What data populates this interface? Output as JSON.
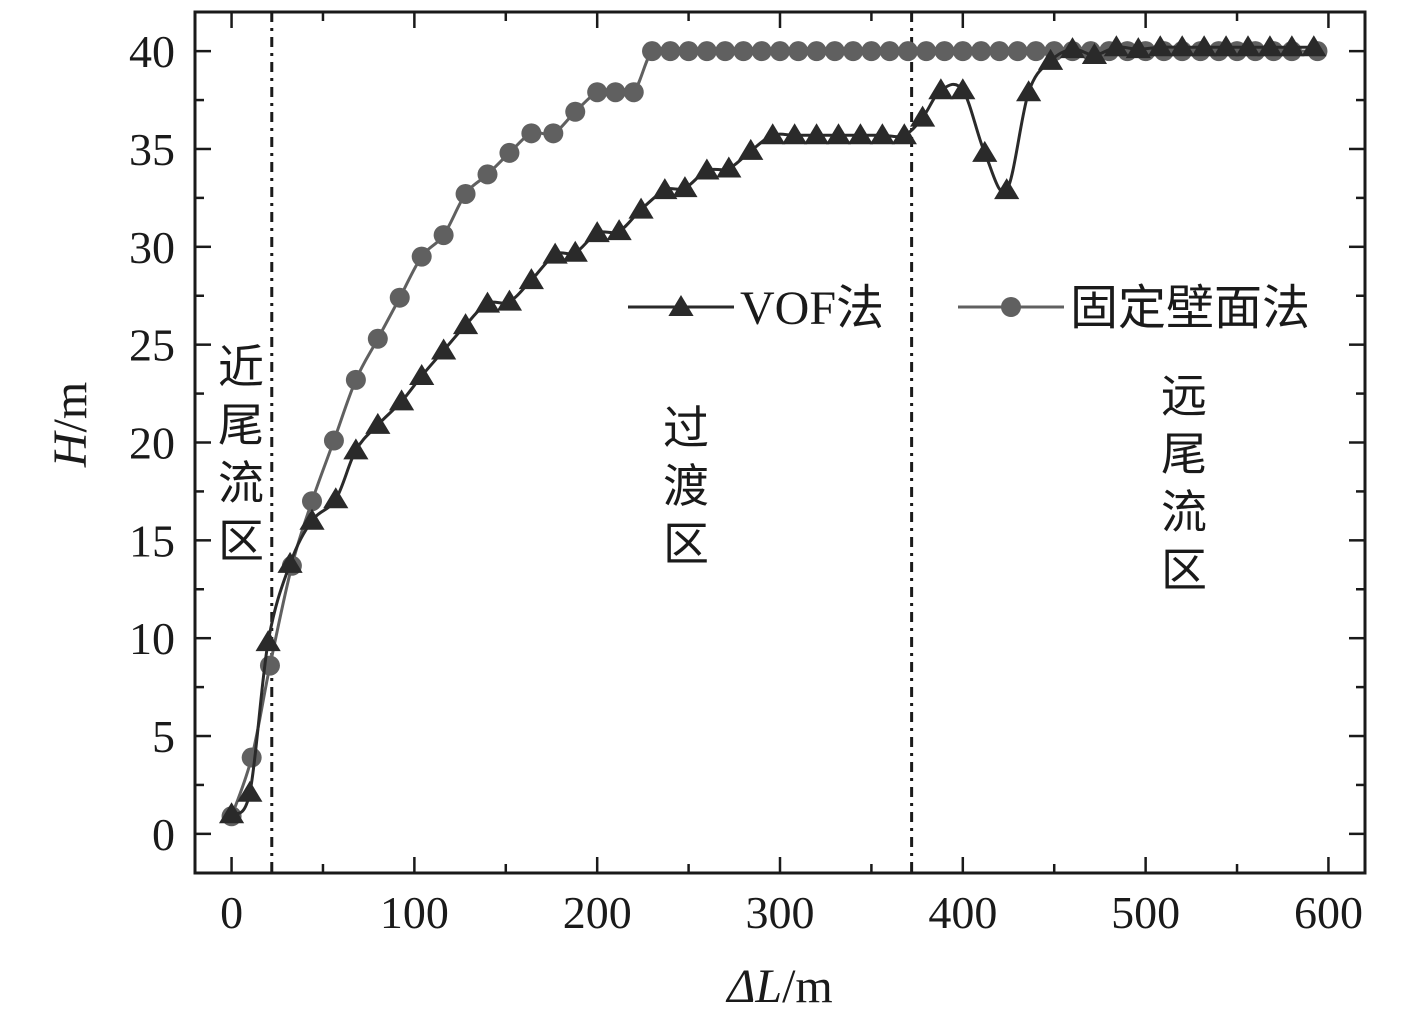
{
  "chart_data": {
    "type": "line",
    "xlabel": "ΔL/m",
    "ylabel": "H/m",
    "xlabel_parts": {
      "var": "ΔL",
      "unit": "/m"
    },
    "ylabel_parts": {
      "var": "H",
      "unit": "/m"
    },
    "xlim": [
      -20,
      620
    ],
    "ylim": [
      -2,
      42
    ],
    "xticks": [
      0,
      100,
      200,
      300,
      400,
      500,
      600
    ],
    "yticks": [
      0,
      5,
      10,
      15,
      20,
      25,
      30,
      35,
      40
    ],
    "grid": false,
    "legend_position": "upper-right (inside)",
    "vertical_lines": [
      22,
      372
    ],
    "regions": [
      {
        "label": "近尾流区",
        "chars": [
          "近",
          "尾",
          "流",
          "区"
        ]
      },
      {
        "label": "过渡区",
        "chars": [
          "过",
          "渡",
          "区"
        ]
      },
      {
        "label": "远尾流区",
        "chars": [
          "远",
          "尾",
          "流",
          "区"
        ]
      }
    ],
    "series": [
      {
        "name": "VOF法",
        "marker": "triangle",
        "color": "#2a2a2a",
        "x": [
          0,
          10,
          20,
          32,
          44,
          57,
          68,
          80,
          93,
          104,
          116,
          128,
          140,
          152,
          164,
          177,
          188,
          200,
          212,
          224,
          237,
          248,
          260,
          272,
          284,
          296,
          308,
          320,
          332,
          344,
          356,
          368,
          378,
          388,
          400,
          412,
          424,
          436,
          448,
          460,
          472,
          484,
          496,
          508,
          520,
          532,
          544,
          556,
          568,
          580,
          592
        ],
        "y": [
          1.0,
          2.1,
          9.8,
          13.8,
          16.0,
          17.1,
          19.6,
          20.9,
          22.1,
          23.4,
          24.7,
          26.0,
          27.1,
          27.2,
          28.3,
          29.6,
          29.7,
          30.7,
          30.8,
          31.9,
          32.9,
          33.0,
          33.9,
          34.0,
          34.9,
          35.7,
          35.7,
          35.7,
          35.7,
          35.7,
          35.7,
          35.7,
          36.6,
          38.0,
          38.0,
          34.8,
          32.9,
          37.9,
          39.5,
          40.1,
          39.8,
          40.2,
          40.1,
          40.2,
          40.2,
          40.2,
          40.2,
          40.2,
          40.2,
          40.2,
          40.2
        ]
      },
      {
        "name": "固定壁面法",
        "marker": "circle",
        "color": "#606060",
        "x": [
          0,
          11,
          21,
          33,
          44,
          56,
          68,
          80,
          92,
          104,
          116,
          128,
          140,
          152,
          164,
          176,
          188,
          200,
          210,
          220,
          230,
          240,
          250,
          260,
          270,
          280,
          290,
          300,
          310,
          320,
          330,
          340,
          350,
          360,
          370,
          380,
          390,
          400,
          410,
          420,
          430,
          440,
          450,
          460,
          470,
          480,
          490,
          500,
          510,
          520,
          530,
          540,
          550,
          560,
          570,
          580,
          594
        ],
        "y": [
          0.9,
          3.9,
          8.6,
          13.7,
          17.0,
          20.1,
          23.2,
          25.3,
          27.4,
          29.5,
          30.6,
          32.7,
          33.7,
          34.8,
          35.8,
          35.8,
          36.9,
          37.9,
          37.9,
          37.9,
          40.0,
          40.0,
          40.0,
          40.0,
          40.0,
          40.0,
          40.0,
          40.0,
          40.0,
          40.0,
          40.0,
          40.0,
          40.0,
          40.0,
          40.0,
          40.0,
          40.0,
          40.0,
          40.0,
          40.0,
          40.0,
          40.0,
          40.0,
          40.0,
          40.0,
          40.0,
          40.0,
          40.0,
          40.0,
          40.0,
          40.0,
          40.0,
          40.0,
          40.0,
          40.0,
          40.0,
          40.0
        ]
      }
    ]
  }
}
